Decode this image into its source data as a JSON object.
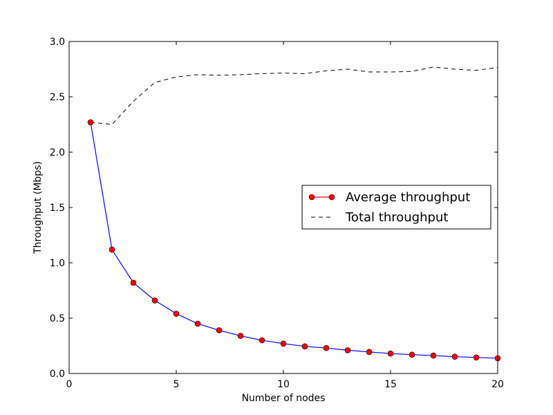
{
  "chart_data": {
    "type": "line",
    "title": "",
    "xlabel": "Number of nodes",
    "ylabel": "Throughput (Mbps)",
    "xlim": [
      0,
      20
    ],
    "ylim": [
      0.0,
      3.0
    ],
    "x_ticks": [
      0,
      5,
      10,
      15,
      20
    ],
    "x_tick_labels": [
      "0",
      "5",
      "10",
      "15",
      "20"
    ],
    "y_ticks": [
      0.0,
      0.5,
      1.0,
      1.5,
      2.0,
      2.5,
      3.0
    ],
    "y_tick_labels": [
      "0.0",
      "0.5",
      "1.0",
      "1.5",
      "2.0",
      "2.5",
      "3.0"
    ],
    "grid": false,
    "legend_position": "center-right",
    "x": [
      1,
      2,
      3,
      4,
      5,
      6,
      7,
      8,
      9,
      10,
      11,
      12,
      13,
      14,
      15,
      16,
      17,
      18,
      19,
      20
    ],
    "series": [
      {
        "name": "Average throughput",
        "style": "line-with-circle-markers",
        "line_color": "#0000ff",
        "legend_line_color": "#ff0000",
        "marker_color": "#ff0000",
        "values": [
          2.27,
          1.12,
          0.82,
          0.66,
          0.54,
          0.45,
          0.39,
          0.34,
          0.3,
          0.27,
          0.245,
          0.23,
          0.21,
          0.195,
          0.18,
          0.17,
          0.162,
          0.152,
          0.145,
          0.138
        ]
      },
      {
        "name": "Total throughput",
        "style": "dashed-line",
        "line_color": "#000000",
        "values": [
          2.27,
          2.25,
          2.46,
          2.63,
          2.68,
          2.7,
          2.695,
          2.7,
          2.71,
          2.715,
          2.71,
          2.735,
          2.75,
          2.725,
          2.725,
          2.73,
          2.77,
          2.75,
          2.74,
          2.765
        ]
      }
    ]
  }
}
